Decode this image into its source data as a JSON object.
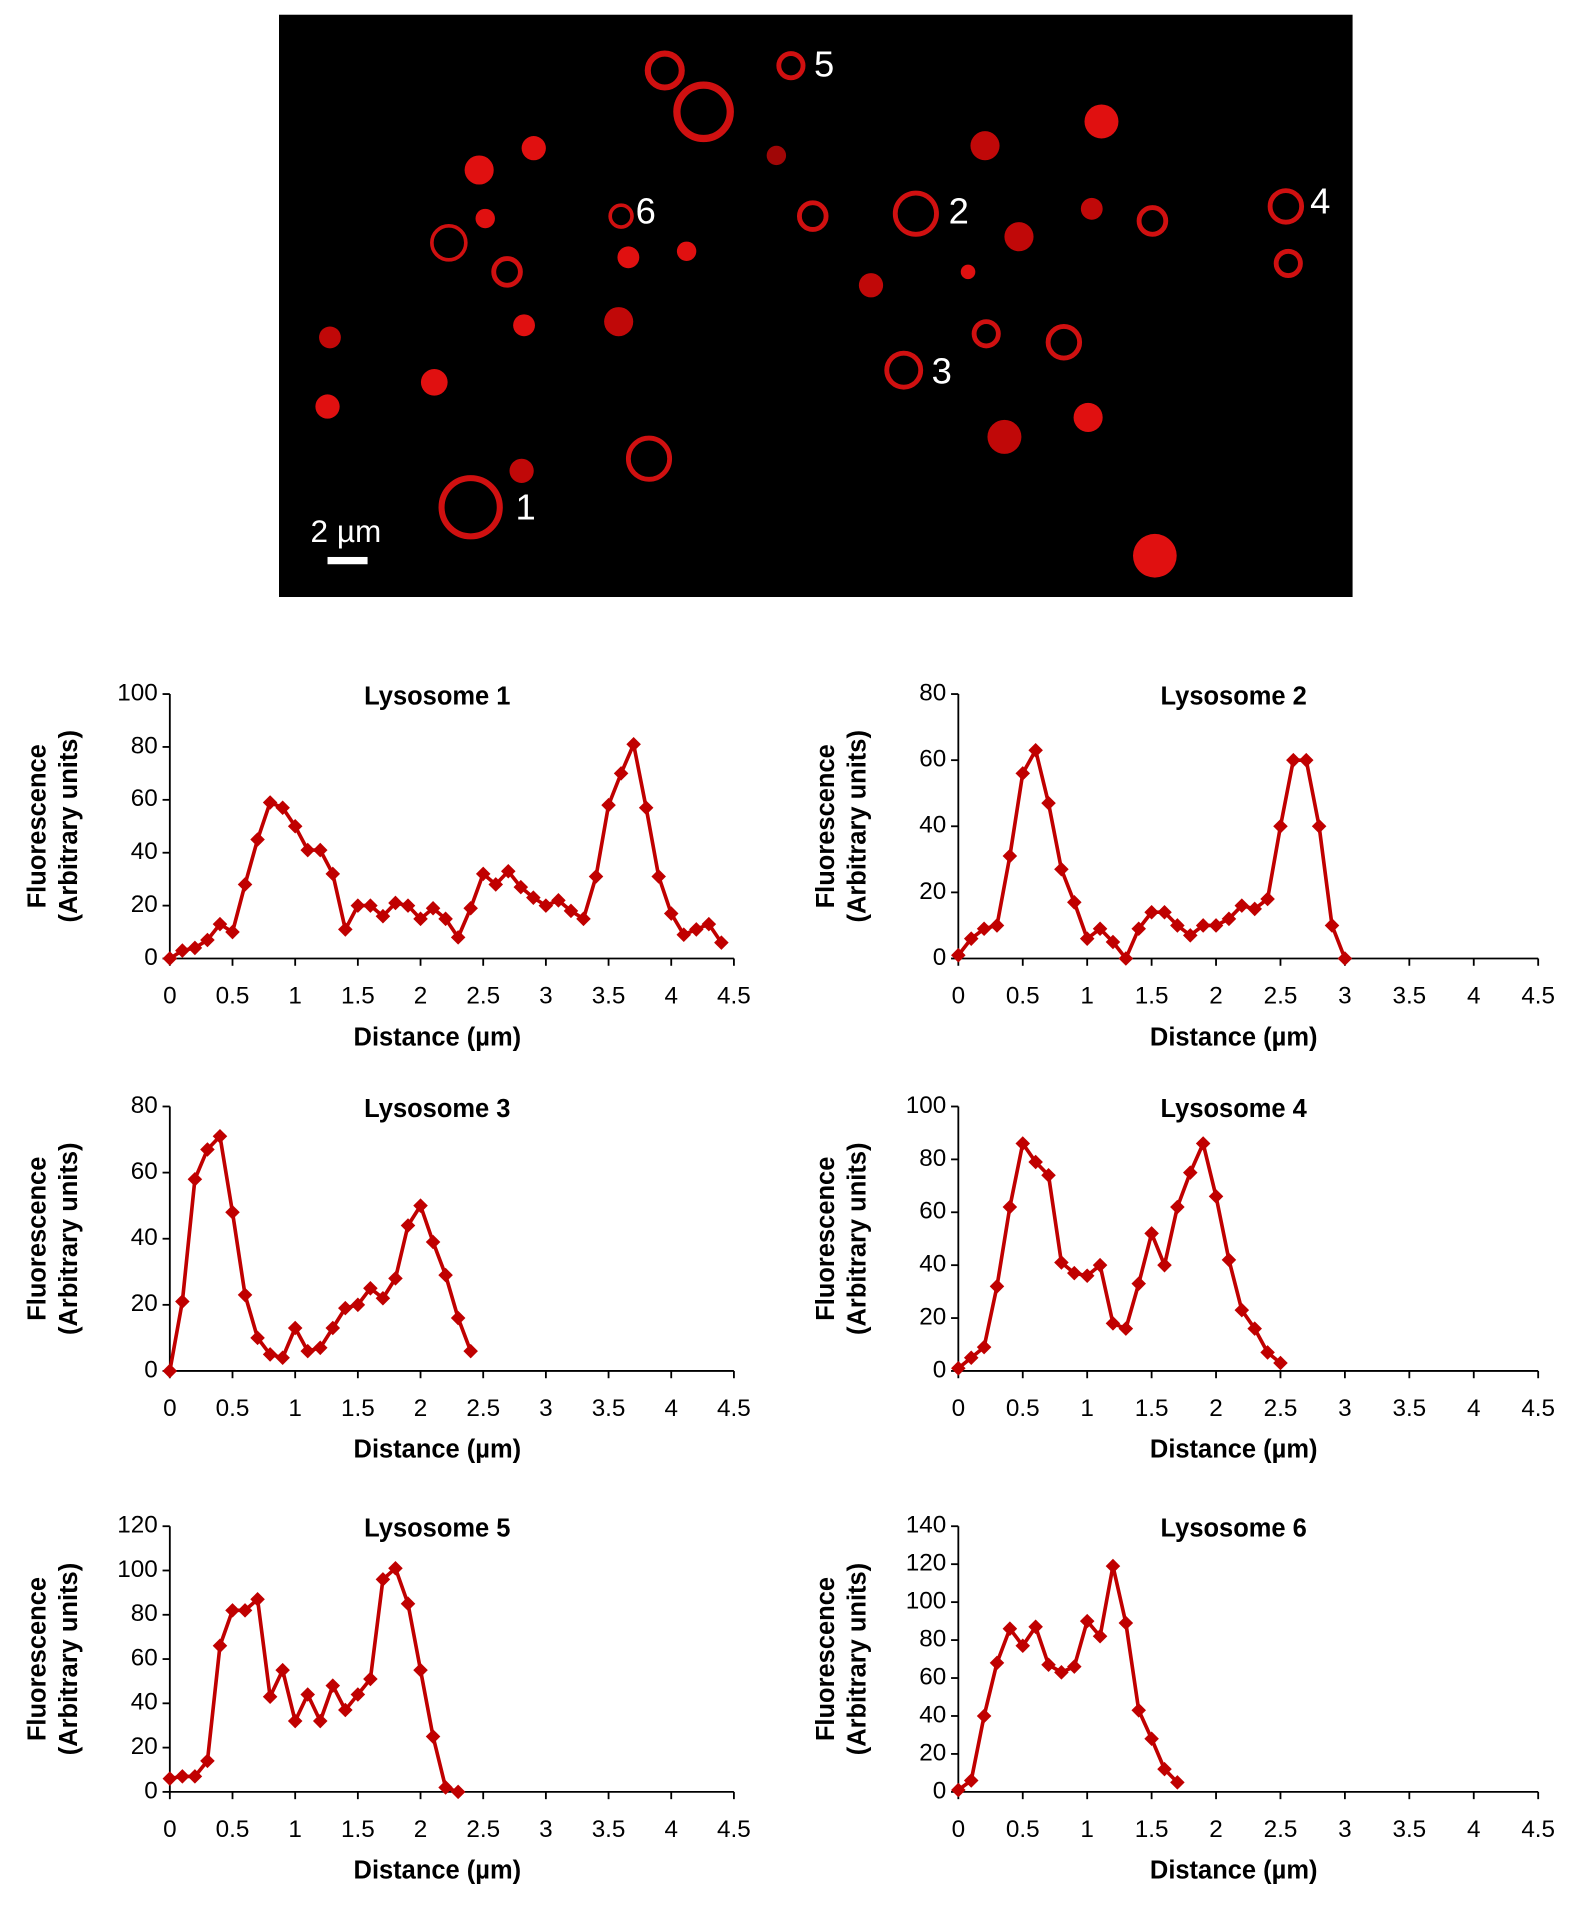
{
  "image": {
    "labels": [
      "1",
      "2",
      "3",
      "4",
      "5",
      "6"
    ],
    "scale_bar": "2 µm"
  },
  "chart_data": [
    {
      "type": "line",
      "title": "Lysosome 1",
      "x_label": "Distance (µm)",
      "y_label": [
        "Fluorescence",
        "(Arbitrary units)"
      ],
      "color": "#c00000",
      "x": [
        0,
        0.1,
        0.2,
        0.3,
        0.4,
        0.5,
        0.6,
        0.7,
        0.8,
        0.9,
        1.0,
        1.1,
        1.2,
        1.3,
        1.4,
        1.5,
        1.6,
        1.7,
        1.8,
        1.9,
        2.0,
        2.1,
        2.2,
        2.3,
        2.4,
        2.5,
        2.6,
        2.7,
        2.8,
        2.9,
        3.0,
        3.1,
        3.2,
        3.3,
        3.4,
        3.5,
        3.6,
        3.7,
        3.8,
        3.9,
        4.0,
        4.1,
        4.2,
        4.3,
        4.4
      ],
      "values": [
        0,
        3,
        4,
        7,
        13,
        10,
        28,
        45,
        59,
        57,
        50,
        41,
        41,
        32,
        11,
        20,
        20,
        16,
        21,
        20,
        15,
        19,
        15,
        8,
        19,
        32,
        28,
        33,
        27,
        23,
        20,
        22,
        18,
        15,
        31,
        58,
        70,
        81,
        57,
        31,
        17,
        9,
        11,
        13,
        6
      ],
      "xlim": [
        0,
        4.5
      ],
      "xticks": [
        0,
        0.5,
        1,
        1.5,
        2,
        2.5,
        3,
        3.5,
        4,
        4.5
      ],
      "ylim": [
        0,
        100
      ],
      "yticks": [
        0,
        20,
        40,
        60,
        80,
        100
      ]
    },
    {
      "type": "line",
      "title": "Lysosome 2",
      "x_label": "Distance (µm)",
      "y_label": [
        "Fluorescence",
        "(Arbitrary units)"
      ],
      "color": "#c00000",
      "x": [
        0,
        0.1,
        0.2,
        0.3,
        0.4,
        0.5,
        0.6,
        0.7,
        0.8,
        0.9,
        1.0,
        1.1,
        1.2,
        1.3,
        1.4,
        1.5,
        1.6,
        1.7,
        1.8,
        1.9,
        2.0,
        2.1,
        2.2,
        2.3,
        2.4,
        2.5,
        2.6,
        2.7,
        2.8,
        2.9,
        3.0
      ],
      "values": [
        1,
        6,
        9,
        10,
        31,
        56,
        63,
        47,
        27,
        17,
        6,
        9,
        5,
        0,
        9,
        14,
        14,
        10,
        7,
        10,
        10,
        12,
        16,
        15,
        18,
        40,
        60,
        60,
        40,
        10,
        0
      ],
      "xlim": [
        0,
        4.5
      ],
      "xticks": [
        0,
        0.5,
        1,
        1.5,
        2,
        2.5,
        3,
        3.5,
        4,
        4.5
      ],
      "ylim": [
        0,
        80
      ],
      "yticks": [
        0,
        20,
        40,
        60,
        80
      ]
    },
    {
      "type": "line",
      "title": "Lysosome 3",
      "x_label": "Distance (µm)",
      "y_label": [
        "Fluorescence",
        "(Arbitrary units)"
      ],
      "color": "#c00000",
      "x": [
        0,
        0.1,
        0.2,
        0.3,
        0.4,
        0.5,
        0.6,
        0.7,
        0.8,
        0.9,
        1.0,
        1.1,
        1.2,
        1.3,
        1.4,
        1.5,
        1.6,
        1.7,
        1.8,
        1.9,
        2.0,
        2.1,
        2.2,
        2.3,
        2.4
      ],
      "values": [
        0,
        21,
        58,
        67,
        71,
        48,
        23,
        10,
        5,
        4,
        13,
        6,
        7,
        13,
        19,
        20,
        25,
        22,
        28,
        44,
        50,
        39,
        29,
        16,
        6
      ],
      "xlim": [
        0,
        4.5
      ],
      "xticks": [
        0,
        0.5,
        1,
        1.5,
        2,
        2.5,
        3,
        3.5,
        4,
        4.5
      ],
      "ylim": [
        0,
        80
      ],
      "yticks": [
        0,
        20,
        40,
        60,
        80
      ]
    },
    {
      "type": "line",
      "title": "Lysosome 4",
      "x_label": "Distance (µm)",
      "y_label": [
        "Fluorescence",
        "(Arbitrary units)"
      ],
      "color": "#c00000",
      "x": [
        0,
        0.1,
        0.2,
        0.3,
        0.4,
        0.5,
        0.6,
        0.7,
        0.8,
        0.9,
        1.0,
        1.1,
        1.2,
        1.3,
        1.4,
        1.5,
        1.6,
        1.7,
        1.8,
        1.9,
        2.0,
        2.1,
        2.2,
        2.3,
        2.4,
        2.5
      ],
      "values": [
        1,
        5,
        9,
        32,
        62,
        86,
        79,
        74,
        41,
        37,
        36,
        40,
        18,
        16,
        33,
        52,
        40,
        62,
        75,
        86,
        66,
        42,
        23,
        16,
        7,
        3
      ],
      "xlim": [
        0,
        4.5
      ],
      "xticks": [
        0,
        0.5,
        1,
        1.5,
        2,
        2.5,
        3,
        3.5,
        4,
        4.5
      ],
      "ylim": [
        0,
        100
      ],
      "yticks": [
        0,
        20,
        40,
        60,
        80,
        100
      ]
    },
    {
      "type": "line",
      "title": "Lysosome 5",
      "x_label": "Distance (µm)",
      "y_label": [
        "Fluorescence",
        "(Arbitrary units)"
      ],
      "color": "#c00000",
      "x": [
        0,
        0.1,
        0.2,
        0.3,
        0.4,
        0.5,
        0.6,
        0.7,
        0.8,
        0.9,
        1.0,
        1.1,
        1.2,
        1.3,
        1.4,
        1.5,
        1.6,
        1.7,
        1.8,
        1.9,
        2.0,
        2.1,
        2.2,
        2.3
      ],
      "values": [
        6,
        7,
        7,
        14,
        66,
        82,
        82,
        87,
        43,
        55,
        32,
        44,
        32,
        48,
        37,
        44,
        51,
        96,
        101,
        85,
        55,
        25,
        2,
        0
      ],
      "xlim": [
        0,
        4.5
      ],
      "xticks": [
        0,
        0.5,
        1,
        1.5,
        2,
        2.5,
        3,
        3.5,
        4,
        4.5
      ],
      "ylim": [
        0,
        120
      ],
      "yticks": [
        0,
        20,
        40,
        60,
        80,
        100,
        120
      ]
    },
    {
      "type": "line",
      "title": "Lysosome 6",
      "x_label": "Distance (µm)",
      "y_label": [
        "Fluorescence",
        "(Arbitrary units)"
      ],
      "color": "#c00000",
      "x": [
        0,
        0.1,
        0.2,
        0.3,
        0.4,
        0.5,
        0.6,
        0.7,
        0.8,
        0.9,
        1.0,
        1.1,
        1.2,
        1.3,
        1.4,
        1.5,
        1.6,
        1.7
      ],
      "values": [
        1,
        6,
        40,
        68,
        86,
        77,
        87,
        67,
        63,
        66,
        90,
        82,
        119,
        89,
        43,
        28,
        12,
        5
      ],
      "xlim": [
        0,
        4.5
      ],
      "xticks": [
        0,
        0.5,
        1,
        1.5,
        2,
        2.5,
        3,
        3.5,
        4,
        4.5
      ],
      "ylim": [
        0,
        140
      ],
      "yticks": [
        0,
        20,
        40,
        60,
        80,
        100,
        120,
        140
      ]
    }
  ]
}
